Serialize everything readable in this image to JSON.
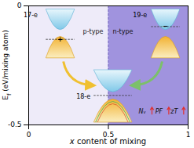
{
  "chart_data": {
    "type": "schematic",
    "xlabel_parts": [
      {
        "text": "x",
        "italic": true
      },
      {
        "text": " content of mixing"
      }
    ],
    "ylabel_parts": [
      {
        "text": "E"
      },
      {
        "text": "f",
        "sub": true
      },
      {
        "text": " (eV/mixing atom)"
      }
    ],
    "xlim": [
      0,
      1
    ],
    "ylim": [
      -0.5,
      0
    ],
    "xticks": [
      0,
      0.5,
      1
    ],
    "yticks": [
      -0.5,
      0
    ],
    "divider": 0.5,
    "regions": [
      {
        "label": "p-type",
        "x1": 0,
        "x2": 0.5,
        "color": "#eeebf9"
      },
      {
        "label": "n-type",
        "x1": 0.5,
        "x2": 1,
        "color": "#a093de"
      }
    ],
    "insets": [
      {
        "label": "17-e",
        "carrier": "+"
      },
      {
        "label": "19-e",
        "carrier": "−"
      },
      {
        "label": "18-e"
      }
    ],
    "annotations": [
      "Nᵥ",
      "PF",
      "zT"
    ]
  }
}
